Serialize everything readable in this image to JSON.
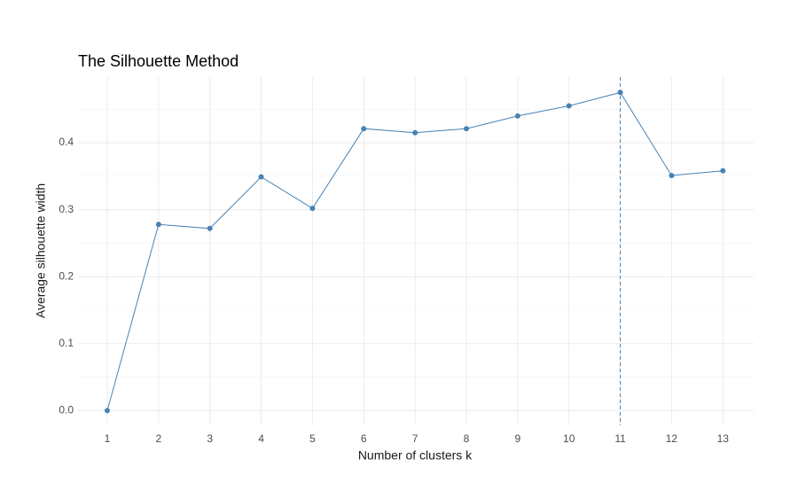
{
  "chart_data": {
    "type": "line",
    "title": "The Silhouette Method",
    "x_label": "Number of clusters k",
    "y_label": "Average silhouette width",
    "x": [
      1,
      2,
      3,
      4,
      5,
      6,
      7,
      8,
      9,
      10,
      11,
      12,
      13
    ],
    "series": [
      {
        "name": "Average silhouette width",
        "color": "#4682b4",
        "values": [
          0,
          0.278,
          0.272,
          0.349,
          0.302,
          0.421,
          0.415,
          0.421,
          0.44,
          0.455,
          0.475,
          0.351,
          0.358
        ]
      }
    ],
    "xlim": [
      0.43,
      13.6
    ],
    "xticks": [
      1,
      2,
      3,
      4,
      5,
      6,
      7,
      8,
      9,
      10,
      11,
      12,
      13
    ],
    "ylim": [
      -0.022,
      0.498
    ],
    "yticks": [
      {
        "value": 0,
        "label": "0.0"
      },
      0.1,
      0.2,
      0.3,
      0.4
    ],
    "vline": 11,
    "grid": true
  }
}
